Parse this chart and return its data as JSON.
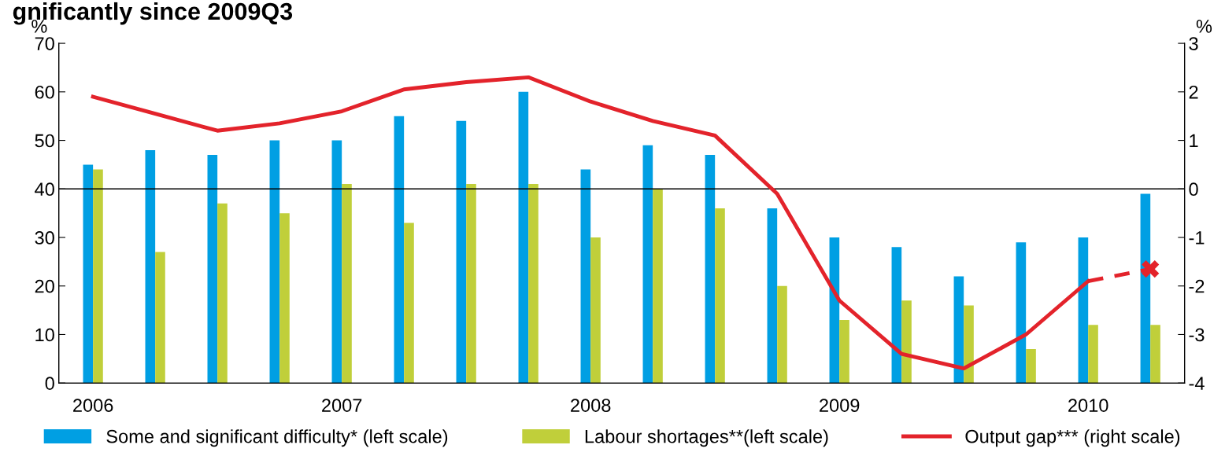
{
  "chart_data": {
    "type": "bar",
    "title": "gnificantly since 2009Q3",
    "categories": [
      "2006",
      null,
      null,
      null,
      "2007",
      null,
      null,
      null,
      "2008",
      null,
      null,
      null,
      "2009",
      null,
      null,
      null,
      "2010",
      null
    ],
    "ylabel": "%",
    "y2label": "%",
    "ylim": [
      0,
      70
    ],
    "yticks": [
      0,
      10,
      20,
      30,
      40,
      50,
      60,
      70
    ],
    "y2lim": [
      -4,
      3
    ],
    "y2ticks": [
      -4,
      -3,
      -2,
      -1,
      0,
      1,
      2,
      3
    ],
    "series": [
      {
        "name": "Some and significant difficulty* (left scale)",
        "color": "#009fe3",
        "values": [
          45,
          48,
          47,
          50,
          50,
          55,
          54,
          60,
          44,
          49,
          47,
          36,
          30,
          28,
          22,
          29,
          30,
          39
        ]
      },
      {
        "name": "Labour shortages**(left scale)",
        "color": "#c0cf3a",
        "values": [
          44,
          27,
          37,
          35,
          41,
          33,
          41,
          41,
          30,
          40,
          36,
          20,
          13,
          17,
          16,
          7,
          12,
          12
        ]
      },
      {
        "name": "Output gap*** (right scale)",
        "type": "line",
        "axis": "y2",
        "color": "#e3232b",
        "line_style": "solid",
        "marker": "none",
        "values": [
          1.9,
          1.55,
          1.2,
          1.35,
          1.6,
          2.05,
          2.2,
          2.3,
          1.8,
          1.4,
          1.1,
          -0.1,
          -2.3,
          -3.4,
          -3.7,
          -3.0,
          -1.9,
          null
        ]
      },
      {
        "type": "line",
        "axis": "y2",
        "color": "#e3232b",
        "line_style": "dashed",
        "marker": "cross",
        "values": [
          null,
          null,
          null,
          null,
          null,
          null,
          null,
          null,
          null,
          null,
          null,
          null,
          null,
          null,
          null,
          null,
          -1.9,
          -1.65
        ]
      }
    ],
    "ref_lines": [
      {
        "axis": "y2",
        "value": 0,
        "color": "#000000"
      }
    ],
    "grid": false,
    "legend": "bottom"
  }
}
